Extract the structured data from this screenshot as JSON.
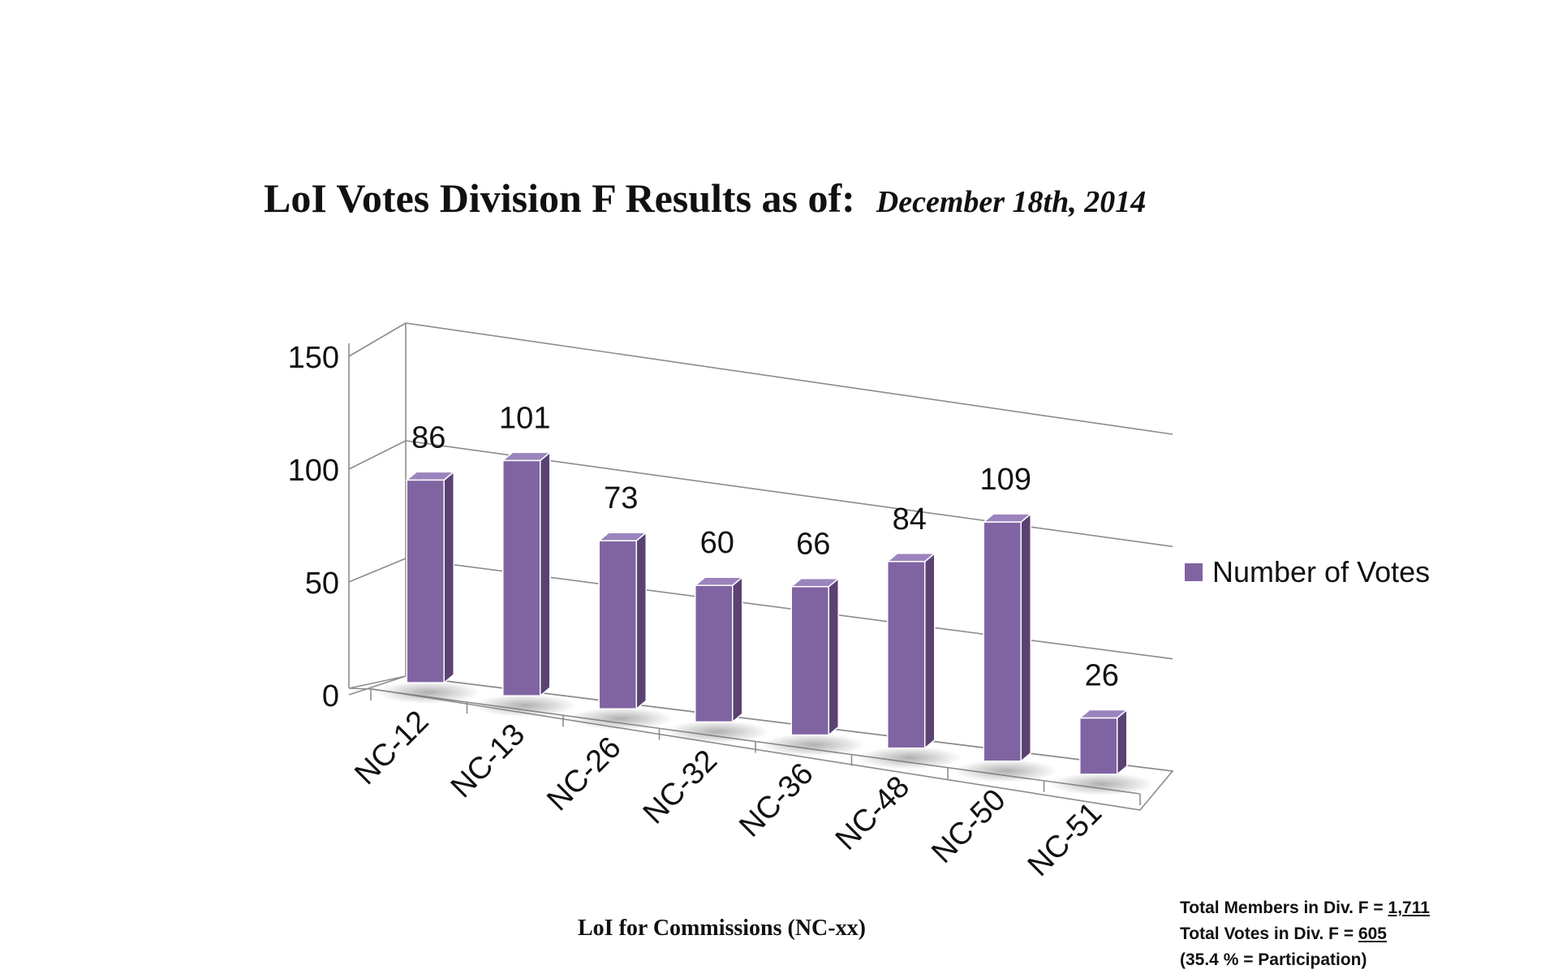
{
  "chart_data": {
    "type": "bar",
    "title": "LoI Votes Division F Results as of:",
    "subtitle": "December 18th, 2014",
    "xlabel": "LoI for Commissions (NC-xx)",
    "ylabel": "",
    "categories": [
      "NC-12",
      "NC-13",
      "NC-26",
      "NC-32",
      "NC-36",
      "NC-48",
      "NC-50",
      "NC-51"
    ],
    "series": [
      {
        "name": "Number of Votes",
        "values": [
          86,
          101,
          73,
          60,
          66,
          84,
          109,
          26
        ]
      }
    ],
    "ylim": [
      0,
      150
    ],
    "yticks": [
      "0",
      "50",
      "100",
      "150"
    ],
    "grid": true,
    "legend": "right",
    "bar_color": "#8064a2",
    "bar_side_color": "#5a4275",
    "bar_top_color": "#9b84bd"
  },
  "stats": {
    "members_prefix": "Total Members in Div. F = ",
    "members_value": "1,711",
    "votes_prefix": "Total Votes in Div. F = ",
    "votes_value": "605",
    "participation": "(35.4 % = Participation)"
  }
}
